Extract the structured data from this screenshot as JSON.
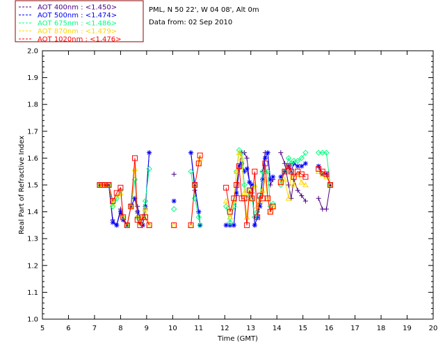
{
  "info": {
    "line1": "PML, N 50 22', W 04 08', Alt 0m",
    "line2": "Data from: 02 Sep 2010"
  },
  "chart_data": {
    "type": "line",
    "xlabel": "Time (GMT)",
    "ylabel": "Real Part of Refractive Index",
    "xlim": [
      5,
      20
    ],
    "ylim": [
      1.0,
      2.0
    ],
    "x_ticks": [
      "5",
      "6",
      "7",
      "8",
      "9",
      "10",
      "11",
      "12",
      "13",
      "14",
      "15",
      "16",
      "17",
      "18",
      "19",
      "20"
    ],
    "y_ticks": [
      "1.0",
      "1.1",
      "1.2",
      "1.3",
      "1.4",
      "1.5",
      "1.6",
      "1.7",
      "1.8",
      "1.9",
      "2.0"
    ],
    "legend_position": "top-left, outside plot",
    "series": [
      {
        "name": "AOT  400nm : <1.450>",
        "color": "#4b0082",
        "marker": "plus",
        "segments": [
          [
            [
              7.2,
              1.5
            ],
            [
              7.3,
              1.5
            ],
            [
              7.4,
              1.5
            ],
            [
              7.55,
              1.5
            ],
            [
              7.7,
              1.37
            ],
            [
              7.85,
              1.35
            ],
            [
              8.0,
              1.41
            ],
            [
              8.1,
              1.37
            ],
            [
              8.25,
              1.35
            ],
            [
              8.4,
              1.42
            ],
            [
              8.55,
              1.45
            ],
            [
              8.65,
              1.42
            ],
            [
              8.75,
              1.37
            ],
            [
              8.85,
              1.35
            ],
            [
              8.95,
              1.41
            ],
            [
              9.1,
              1.62
            ]
          ],
          [
            [
              10.05,
              1.54
            ]
          ],
          [
            [
              10.7,
              1.62
            ],
            [
              10.85,
              1.48
            ],
            [
              11.0,
              1.4
            ],
            [
              11.05,
              1.35
            ]
          ],
          [
            [
              12.05,
              1.35
            ],
            [
              12.2,
              1.35
            ],
            [
              12.35,
              1.35
            ],
            [
              12.45,
              1.46
            ],
            [
              12.55,
              1.56
            ],
            [
              12.65,
              1.62
            ],
            [
              12.75,
              1.62
            ],
            [
              12.85,
              1.6
            ],
            [
              12.95,
              1.51
            ],
            [
              13.05,
              1.47
            ],
            [
              13.15,
              1.35
            ],
            [
              13.25,
              1.38
            ],
            [
              13.35,
              1.43
            ],
            [
              13.45,
              1.55
            ],
            [
              13.55,
              1.62
            ],
            [
              13.65,
              1.62
            ],
            [
              13.75,
              1.5
            ],
            [
              13.85,
              1.52
            ]
          ],
          [
            [
              14.15,
              1.62
            ],
            [
              14.3,
              1.58
            ],
            [
              14.45,
              1.5
            ],
            [
              14.55,
              1.45
            ],
            [
              14.65,
              1.52
            ],
            [
              14.8,
              1.48
            ],
            [
              14.95,
              1.46
            ],
            [
              15.1,
              1.44
            ]
          ],
          [
            [
              15.6,
              1.45
            ],
            [
              15.75,
              1.41
            ],
            [
              15.9,
              1.41
            ],
            [
              16.05,
              1.5
            ]
          ]
        ]
      },
      {
        "name": "AOT  500nm : <1.474>",
        "color": "#0000ff",
        "marker": "asterisk",
        "segments": [
          [
            [
              7.2,
              1.5
            ],
            [
              7.3,
              1.5
            ],
            [
              7.4,
              1.5
            ],
            [
              7.55,
              1.5
            ],
            [
              7.7,
              1.36
            ],
            [
              7.85,
              1.35
            ],
            [
              8.0,
              1.4
            ],
            [
              8.1,
              1.37
            ],
            [
              8.25,
              1.35
            ],
            [
              8.4,
              1.42
            ],
            [
              8.55,
              1.45
            ],
            [
              8.65,
              1.4
            ],
            [
              8.75,
              1.36
            ],
            [
              8.85,
              1.35
            ],
            [
              8.95,
              1.42
            ],
            [
              9.1,
              1.62
            ]
          ],
          [
            [
              10.05,
              1.44
            ]
          ],
          [
            [
              10.7,
              1.62
            ],
            [
              10.85,
              1.5
            ],
            [
              11.0,
              1.4
            ],
            [
              11.05,
              1.35
            ]
          ],
          [
            [
              12.05,
              1.35
            ],
            [
              12.2,
              1.35
            ],
            [
              12.35,
              1.35
            ],
            [
              12.45,
              1.47
            ],
            [
              12.55,
              1.57
            ],
            [
              12.65,
              1.58
            ],
            [
              12.75,
              1.55
            ],
            [
              12.85,
              1.56
            ],
            [
              12.95,
              1.51
            ],
            [
              13.05,
              1.5
            ],
            [
              13.15,
              1.35
            ],
            [
              13.25,
              1.38
            ],
            [
              13.35,
              1.42
            ],
            [
              13.45,
              1.52
            ],
            [
              13.55,
              1.6
            ],
            [
              13.65,
              1.62
            ],
            [
              13.75,
              1.52
            ],
            [
              13.85,
              1.53
            ]
          ],
          [
            [
              14.15,
              1.53
            ],
            [
              14.3,
              1.55
            ],
            [
              14.45,
              1.57
            ],
            [
              14.55,
              1.55
            ],
            [
              14.65,
              1.58
            ],
            [
              14.8,
              1.57
            ],
            [
              14.95,
              1.57
            ],
            [
              15.1,
              1.58
            ]
          ],
          [
            [
              15.6,
              1.57
            ],
            [
              15.75,
              1.54
            ],
            [
              15.9,
              1.54
            ],
            [
              16.05,
              1.5
            ]
          ]
        ]
      },
      {
        "name": "AOT  675nm : <1.486>",
        "color": "#00ff7f",
        "marker": "diamond",
        "segments": [
          [
            [
              7.2,
              1.5
            ],
            [
              7.3,
              1.5
            ],
            [
              7.4,
              1.5
            ],
            [
              7.55,
              1.5
            ],
            [
              7.7,
              1.42
            ],
            [
              7.85,
              1.45
            ],
            [
              8.0,
              1.48
            ],
            [
              8.1,
              1.38
            ],
            [
              8.25,
              1.35
            ],
            [
              8.4,
              1.42
            ],
            [
              8.55,
              1.52
            ],
            [
              8.65,
              1.38
            ],
            [
              8.75,
              1.36
            ],
            [
              8.85,
              1.38
            ],
            [
              8.95,
              1.44
            ],
            [
              9.1,
              1.56
            ]
          ],
          [
            [
              10.05,
              1.41
            ]
          ],
          [
            [
              10.7,
              1.55
            ],
            [
              10.85,
              1.45
            ],
            [
              11.0,
              1.38
            ],
            [
              11.05,
              1.35
            ]
          ],
          [
            [
              12.05,
              1.42
            ],
            [
              12.2,
              1.36
            ],
            [
              12.35,
              1.42
            ],
            [
              12.45,
              1.55
            ],
            [
              12.55,
              1.63
            ],
            [
              12.65,
              1.62
            ],
            [
              12.75,
              1.5
            ],
            [
              12.85,
              1.45
            ],
            [
              12.95,
              1.48
            ],
            [
              13.05,
              1.45
            ],
            [
              13.15,
              1.38
            ],
            [
              13.25,
              1.4
            ],
            [
              13.35,
              1.45
            ],
            [
              13.45,
              1.55
            ],
            [
              13.55,
              1.55
            ],
            [
              13.65,
              1.55
            ],
            [
              13.75,
              1.42
            ],
            [
              13.85,
              1.43
            ]
          ],
          [
            [
              14.15,
              1.5
            ],
            [
              14.3,
              1.55
            ],
            [
              14.45,
              1.6
            ],
            [
              14.55,
              1.58
            ],
            [
              14.65,
              1.59
            ],
            [
              14.8,
              1.59
            ],
            [
              14.95,
              1.6
            ],
            [
              15.1,
              1.62
            ]
          ],
          [
            [
              15.6,
              1.62
            ],
            [
              15.75,
              1.62
            ],
            [
              15.9,
              1.62
            ],
            [
              16.05,
              1.5
            ]
          ]
        ]
      },
      {
        "name": "AOT  870nm : <1.479>",
        "color": "#ffd700",
        "marker": "triangle",
        "segments": [
          [
            [
              7.2,
              1.5
            ],
            [
              7.3,
              1.5
            ],
            [
              7.4,
              1.5
            ],
            [
              7.55,
              1.5
            ],
            [
              7.7,
              1.43
            ],
            [
              7.85,
              1.46
            ],
            [
              8.0,
              1.47
            ],
            [
              8.1,
              1.38
            ],
            [
              8.25,
              1.35
            ],
            [
              8.4,
              1.42
            ],
            [
              8.55,
              1.56
            ],
            [
              8.65,
              1.38
            ],
            [
              8.75,
              1.36
            ],
            [
              8.85,
              1.38
            ],
            [
              8.95,
              1.41
            ],
            [
              9.1,
              1.35
            ]
          ],
          [
            [
              10.05,
              1.35
            ]
          ],
          [
            [
              10.7,
              1.35
            ],
            [
              10.85,
              1.5
            ],
            [
              11.0,
              1.58
            ],
            [
              11.05,
              1.6
            ]
          ],
          [
            [
              12.05,
              1.44
            ],
            [
              12.2,
              1.38
            ],
            [
              12.35,
              1.44
            ],
            [
              12.45,
              1.55
            ],
            [
              12.55,
              1.62
            ],
            [
              12.65,
              1.6
            ],
            [
              12.75,
              1.47
            ],
            [
              12.85,
              1.38
            ],
            [
              12.95,
              1.48
            ],
            [
              13.05,
              1.45
            ],
            [
              13.15,
              1.5
            ],
            [
              13.25,
              1.42
            ],
            [
              13.35,
              1.44
            ],
            [
              13.45,
              1.48
            ],
            [
              13.55,
              1.52
            ],
            [
              13.65,
              1.45
            ],
            [
              13.75,
              1.4
            ],
            [
              13.85,
              1.42
            ]
          ],
          [
            [
              14.15,
              1.51
            ],
            [
              14.3,
              1.52
            ],
            [
              14.45,
              1.45
            ],
            [
              14.55,
              1.55
            ],
            [
              14.65,
              1.5
            ],
            [
              14.8,
              1.54
            ],
            [
              14.95,
              1.51
            ],
            [
              15.1,
              1.5
            ]
          ],
          [
            [
              15.6,
              1.55
            ],
            [
              15.75,
              1.54
            ],
            [
              15.9,
              1.53
            ],
            [
              16.05,
              1.5
            ]
          ]
        ]
      },
      {
        "name": "AOT 1020nm : <1.476>",
        "color": "#ff0000",
        "marker": "square",
        "segments": [
          [
            [
              7.2,
              1.5
            ],
            [
              7.3,
              1.5
            ],
            [
              7.4,
              1.5
            ],
            [
              7.55,
              1.5
            ],
            [
              7.7,
              1.44
            ],
            [
              7.85,
              1.47
            ],
            [
              8.0,
              1.49
            ],
            [
              8.1,
              1.38
            ],
            [
              8.25,
              1.35
            ],
            [
              8.4,
              1.42
            ],
            [
              8.55,
              1.6
            ],
            [
              8.65,
              1.37
            ],
            [
              8.75,
              1.35
            ],
            [
              8.85,
              1.38
            ],
            [
              8.95,
              1.38
            ],
            [
              9.1,
              1.35
            ]
          ],
          [
            [
              10.05,
              1.35
            ]
          ],
          [
            [
              10.7,
              1.35
            ],
            [
              10.85,
              1.5
            ],
            [
              11.0,
              1.58
            ],
            [
              11.05,
              1.61
            ]
          ],
          [
            [
              12.05,
              1.49
            ],
            [
              12.2,
              1.4
            ],
            [
              12.35,
              1.45
            ],
            [
              12.45,
              1.5
            ],
            [
              12.55,
              1.57
            ],
            [
              12.65,
              1.45
            ],
            [
              12.75,
              1.45
            ],
            [
              12.85,
              1.35
            ],
            [
              12.95,
              1.48
            ],
            [
              13.05,
              1.45
            ],
            [
              13.15,
              1.55
            ],
            [
              13.25,
              1.38
            ],
            [
              13.35,
              1.46
            ],
            [
              13.45,
              1.45
            ],
            [
              13.55,
              1.58
            ],
            [
              13.65,
              1.45
            ],
            [
              13.75,
              1.4
            ],
            [
              13.85,
              1.42
            ]
          ],
          [
            [
              14.15,
              1.51
            ],
            [
              14.3,
              1.55
            ],
            [
              14.45,
              1.57
            ],
            [
              14.55,
              1.55
            ],
            [
              14.65,
              1.53
            ],
            [
              14.8,
              1.55
            ],
            [
              14.95,
              1.54
            ],
            [
              15.1,
              1.53
            ]
          ],
          [
            [
              15.6,
              1.56
            ],
            [
              15.75,
              1.55
            ],
            [
              15.9,
              1.54
            ],
            [
              16.05,
              1.5
            ]
          ]
        ]
      }
    ]
  }
}
